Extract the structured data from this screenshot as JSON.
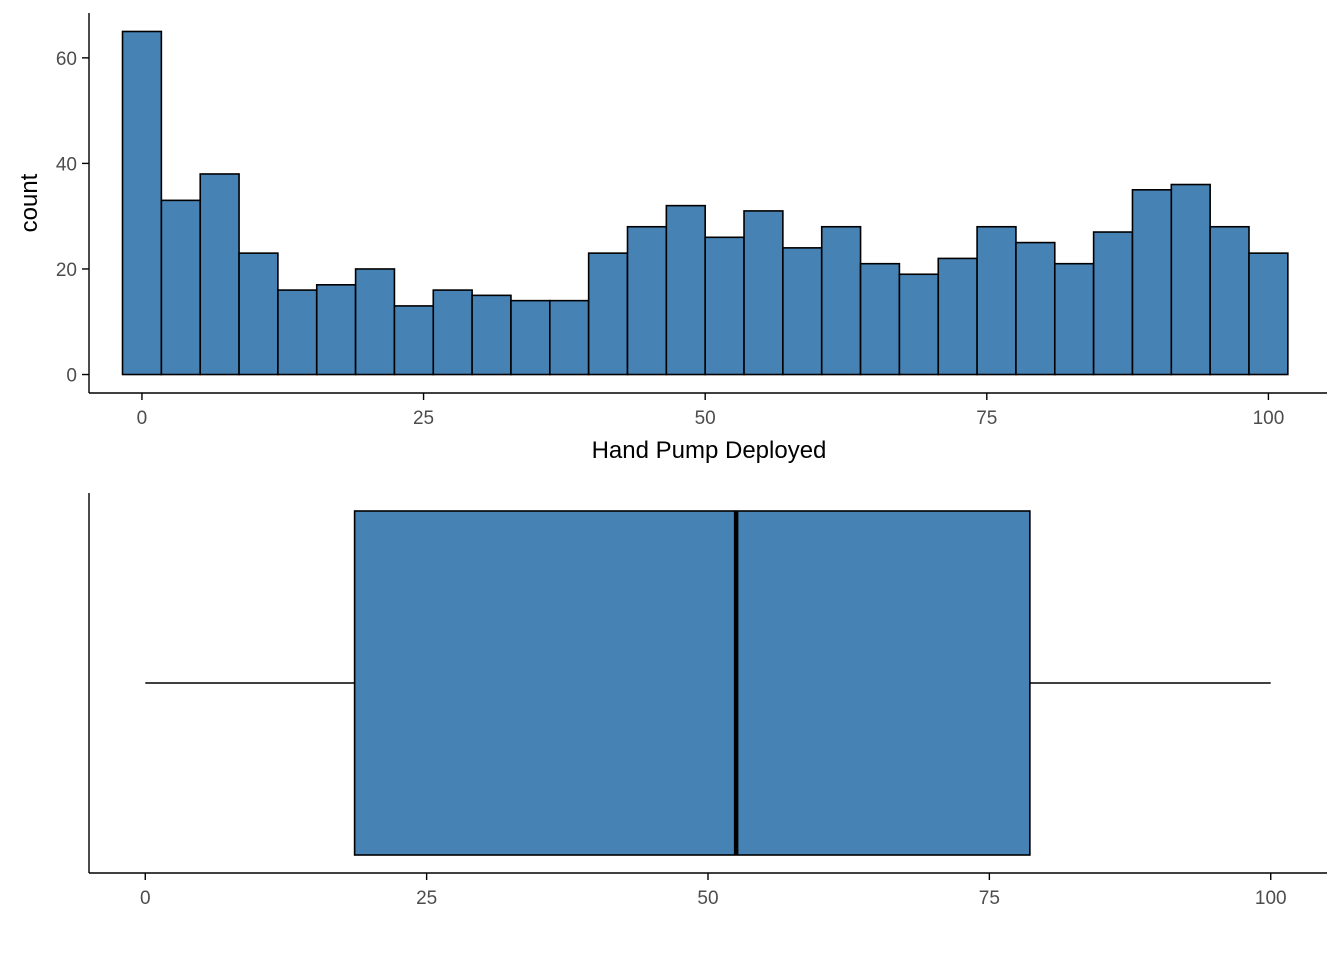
{
  "colors": {
    "fill": "#4682B4",
    "outline": "#000000",
    "axis": "#000000",
    "tick_text": "#4d4d4d"
  },
  "chart_data": [
    {
      "type": "histogram",
      "bins": [
        {
          "x": 0,
          "count": 65
        },
        {
          "x": 3.448,
          "count": 33
        },
        {
          "x": 6.897,
          "count": 38
        },
        {
          "x": 10.345,
          "count": 23
        },
        {
          "x": 13.793,
          "count": 16
        },
        {
          "x": 17.241,
          "count": 17
        },
        {
          "x": 20.69,
          "count": 20
        },
        {
          "x": 24.138,
          "count": 13
        },
        {
          "x": 27.586,
          "count": 16
        },
        {
          "x": 31.034,
          "count": 15
        },
        {
          "x": 34.483,
          "count": 14
        },
        {
          "x": 37.931,
          "count": 14
        },
        {
          "x": 41.379,
          "count": 23
        },
        {
          "x": 44.828,
          "count": 28
        },
        {
          "x": 48.276,
          "count": 32
        },
        {
          "x": 51.724,
          "count": 26
        },
        {
          "x": 55.172,
          "count": 31
        },
        {
          "x": 58.621,
          "count": 24
        },
        {
          "x": 62.069,
          "count": 28
        },
        {
          "x": 65.517,
          "count": 21
        },
        {
          "x": 68.966,
          "count": 19
        },
        {
          "x": 72.414,
          "count": 22
        },
        {
          "x": 75.862,
          "count": 28
        },
        {
          "x": 79.31,
          "count": 25
        },
        {
          "x": 82.759,
          "count": 21
        },
        {
          "x": 86.207,
          "count": 27
        },
        {
          "x": 89.655,
          "count": 35
        },
        {
          "x": 93.103,
          "count": 36
        },
        {
          "x": 96.552,
          "count": 28
        },
        {
          "x": 100,
          "count": 23
        }
      ],
      "binwidth": 3.448,
      "xlabel": "Hand Pump Deployed",
      "ylabel": "count",
      "xlim": [
        -4.7,
        105.2
      ],
      "ylim": [
        -3.5,
        68.5
      ],
      "x_ticks": [
        0,
        25,
        50,
        75,
        100
      ],
      "x_tick_labels": [
        "0",
        "25",
        "50",
        "75",
        "100"
      ],
      "y_ticks": [
        0,
        20,
        40,
        60
      ],
      "y_tick_labels": [
        "0",
        "20",
        "40",
        "60"
      ],
      "grid": false,
      "legend": "none"
    },
    {
      "type": "boxplot",
      "orientation": "horizontal",
      "min": 0,
      "q1": 18.6,
      "median": 52.5,
      "q3": 78.6,
      "max": 100,
      "xlim": [
        -5,
        105
      ],
      "x_ticks": [
        0,
        25,
        50,
        75,
        100
      ],
      "x_tick_labels": [
        "0",
        "25",
        "50",
        "75",
        "100"
      ],
      "xlabel": "",
      "ylabel": "",
      "grid": false,
      "legend": "none"
    }
  ]
}
